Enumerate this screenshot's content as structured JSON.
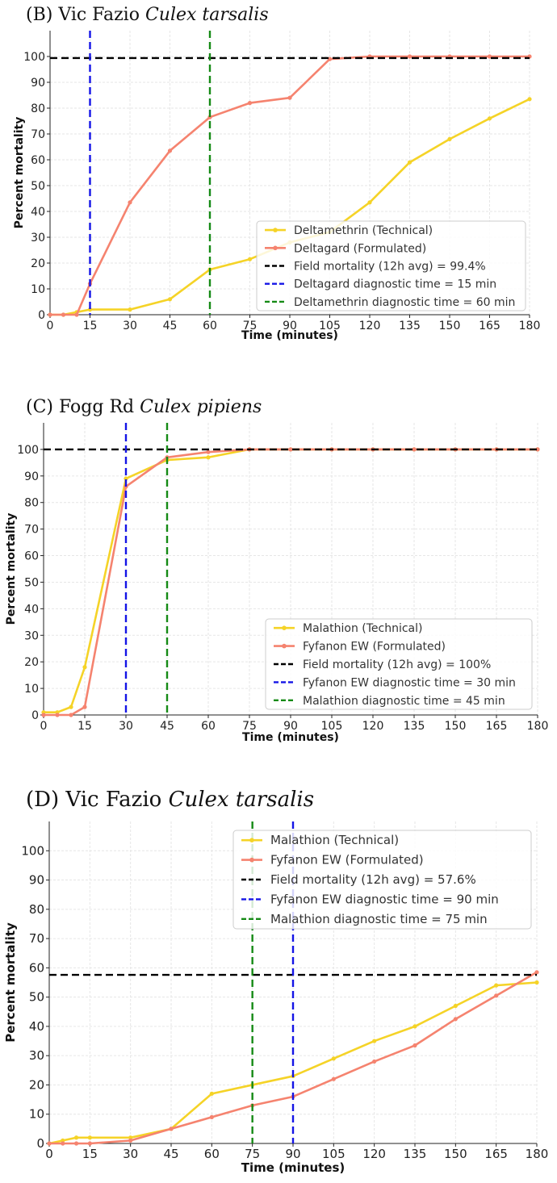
{
  "chart_data": [
    {
      "type": "line",
      "panel_label": "(B) Vic Fazio",
      "species": "Culex tarsalis",
      "xlabel": "Time (minutes)",
      "ylabel": "Percent mortality",
      "xlim": [
        0,
        180
      ],
      "ylim": [
        0,
        110
      ],
      "xticks": [
        0,
        15,
        30,
        45,
        60,
        75,
        90,
        105,
        120,
        135,
        150,
        165,
        180
      ],
      "yticks": [
        0,
        10,
        20,
        30,
        40,
        50,
        60,
        70,
        80,
        90,
        100
      ],
      "grid": true,
      "legend_position": "lower-right",
      "series": [
        {
          "name": "Deltamethrin (Technical)",
          "color": "#f5d327",
          "x": [
            0,
            5,
            10,
            15,
            30,
            45,
            60,
            75,
            90,
            105,
            120,
            135,
            150,
            165,
            180
          ],
          "y": [
            0,
            0,
            1,
            2,
            2,
            6,
            17.5,
            21.5,
            28,
            32,
            43.5,
            59,
            68,
            76,
            83.5
          ]
        },
        {
          "name": "Deltagard (Formulated)",
          "color": "#f5836f",
          "x": [
            0,
            5,
            10,
            15,
            30,
            45,
            60,
            75,
            90,
            105,
            120,
            135,
            150,
            165,
            180
          ],
          "y": [
            0,
            0,
            0,
            12,
            43.5,
            63.5,
            76.5,
            82,
            84,
            99,
            100,
            100,
            100,
            100,
            100
          ]
        }
      ],
      "reference_lines": [
        {
          "name": "Field mortality (12h avg) = 99.4%",
          "orientation": "horizontal",
          "value": 99.4,
          "color": "#000000"
        },
        {
          "name": "Deltagard diagnostic time = 15 min",
          "orientation": "vertical",
          "value": 15,
          "color": "#1414e6"
        },
        {
          "name": "Deltamethrin diagnostic time = 60 min",
          "orientation": "vertical",
          "value": 60,
          "color": "#158a15"
        }
      ]
    },
    {
      "type": "line",
      "panel_label": "(C) Fogg Rd",
      "species": "Culex pipiens",
      "xlabel": "Time (minutes)",
      "ylabel": "Percent mortality",
      "xlim": [
        0,
        180
      ],
      "ylim": [
        0,
        110
      ],
      "xticks": [
        0,
        15,
        30,
        45,
        60,
        75,
        90,
        105,
        120,
        135,
        150,
        165,
        180
      ],
      "yticks": [
        0,
        10,
        20,
        30,
        40,
        50,
        60,
        70,
        80,
        90,
        100
      ],
      "grid": true,
      "legend_position": "lower-right",
      "series": [
        {
          "name": "Malathion (Technical)",
          "color": "#f5d327",
          "x": [
            0,
            5,
            10,
            15,
            30,
            45,
            60,
            75,
            90,
            105,
            120,
            135,
            150,
            165,
            180
          ],
          "y": [
            1,
            1,
            3,
            18,
            89,
            96,
            97,
            100,
            100,
            100,
            100,
            100,
            100,
            100,
            100
          ]
        },
        {
          "name": "Fyfanon EW (Formulated)",
          "color": "#f5836f",
          "x": [
            0,
            5,
            10,
            15,
            30,
            45,
            60,
            75,
            90,
            105,
            120,
            135,
            150,
            165,
            180
          ],
          "y": [
            0,
            0,
            0,
            3,
            86,
            97,
            99,
            100,
            100,
            100,
            100,
            100,
            100,
            100,
            100
          ]
        }
      ],
      "reference_lines": [
        {
          "name": "Field mortality (12h avg) = 100%",
          "orientation": "horizontal",
          "value": 100,
          "color": "#000000"
        },
        {
          "name": "Fyfanon EW diagnostic time = 30 min",
          "orientation": "vertical",
          "value": 30,
          "color": "#1414e6"
        },
        {
          "name": "Malathion diagnostic time = 45 min",
          "orientation": "vertical",
          "value": 45,
          "color": "#158a15"
        }
      ]
    },
    {
      "type": "line",
      "panel_label": "(D) Vic Fazio",
      "species": "Culex tarsalis",
      "xlabel": "Time (minutes)",
      "ylabel": "Percent mortality",
      "xlim": [
        0,
        180
      ],
      "ylim": [
        0,
        110
      ],
      "xticks": [
        0,
        15,
        30,
        45,
        60,
        75,
        90,
        105,
        120,
        135,
        150,
        165,
        180
      ],
      "yticks": [
        0,
        10,
        20,
        30,
        40,
        50,
        60,
        70,
        80,
        90,
        100
      ],
      "grid": true,
      "legend_position": "top-right",
      "series": [
        {
          "name": "Malathion (Technical)",
          "color": "#f5d327",
          "x": [
            0,
            5,
            10,
            15,
            30,
            45,
            60,
            75,
            90,
            105,
            120,
            135,
            150,
            165,
            180
          ],
          "y": [
            0,
            1,
            2,
            2,
            2,
            5,
            17,
            20,
            23,
            29,
            35,
            40,
            47,
            54,
            55
          ]
        },
        {
          "name": "Fyfanon EW (Formulated)",
          "color": "#f5836f",
          "x": [
            0,
            5,
            10,
            15,
            30,
            45,
            60,
            75,
            90,
            105,
            120,
            135,
            150,
            165,
            180
          ],
          "y": [
            0,
            0,
            0,
            0,
            1,
            5,
            9,
            13,
            16,
            22,
            28,
            33.5,
            42.5,
            50.5,
            58.5
          ]
        }
      ],
      "reference_lines": [
        {
          "name": "Field mortality (12h avg) = 57.6%",
          "orientation": "horizontal",
          "value": 57.6,
          "color": "#000000"
        },
        {
          "name": "Fyfanon EW diagnostic time = 90 min",
          "orientation": "vertical",
          "value": 90,
          "color": "#1414e6"
        },
        {
          "name": "Malathion diagnostic time = 75 min",
          "orientation": "vertical",
          "value": 75,
          "color": "#158a15"
        }
      ]
    }
  ]
}
